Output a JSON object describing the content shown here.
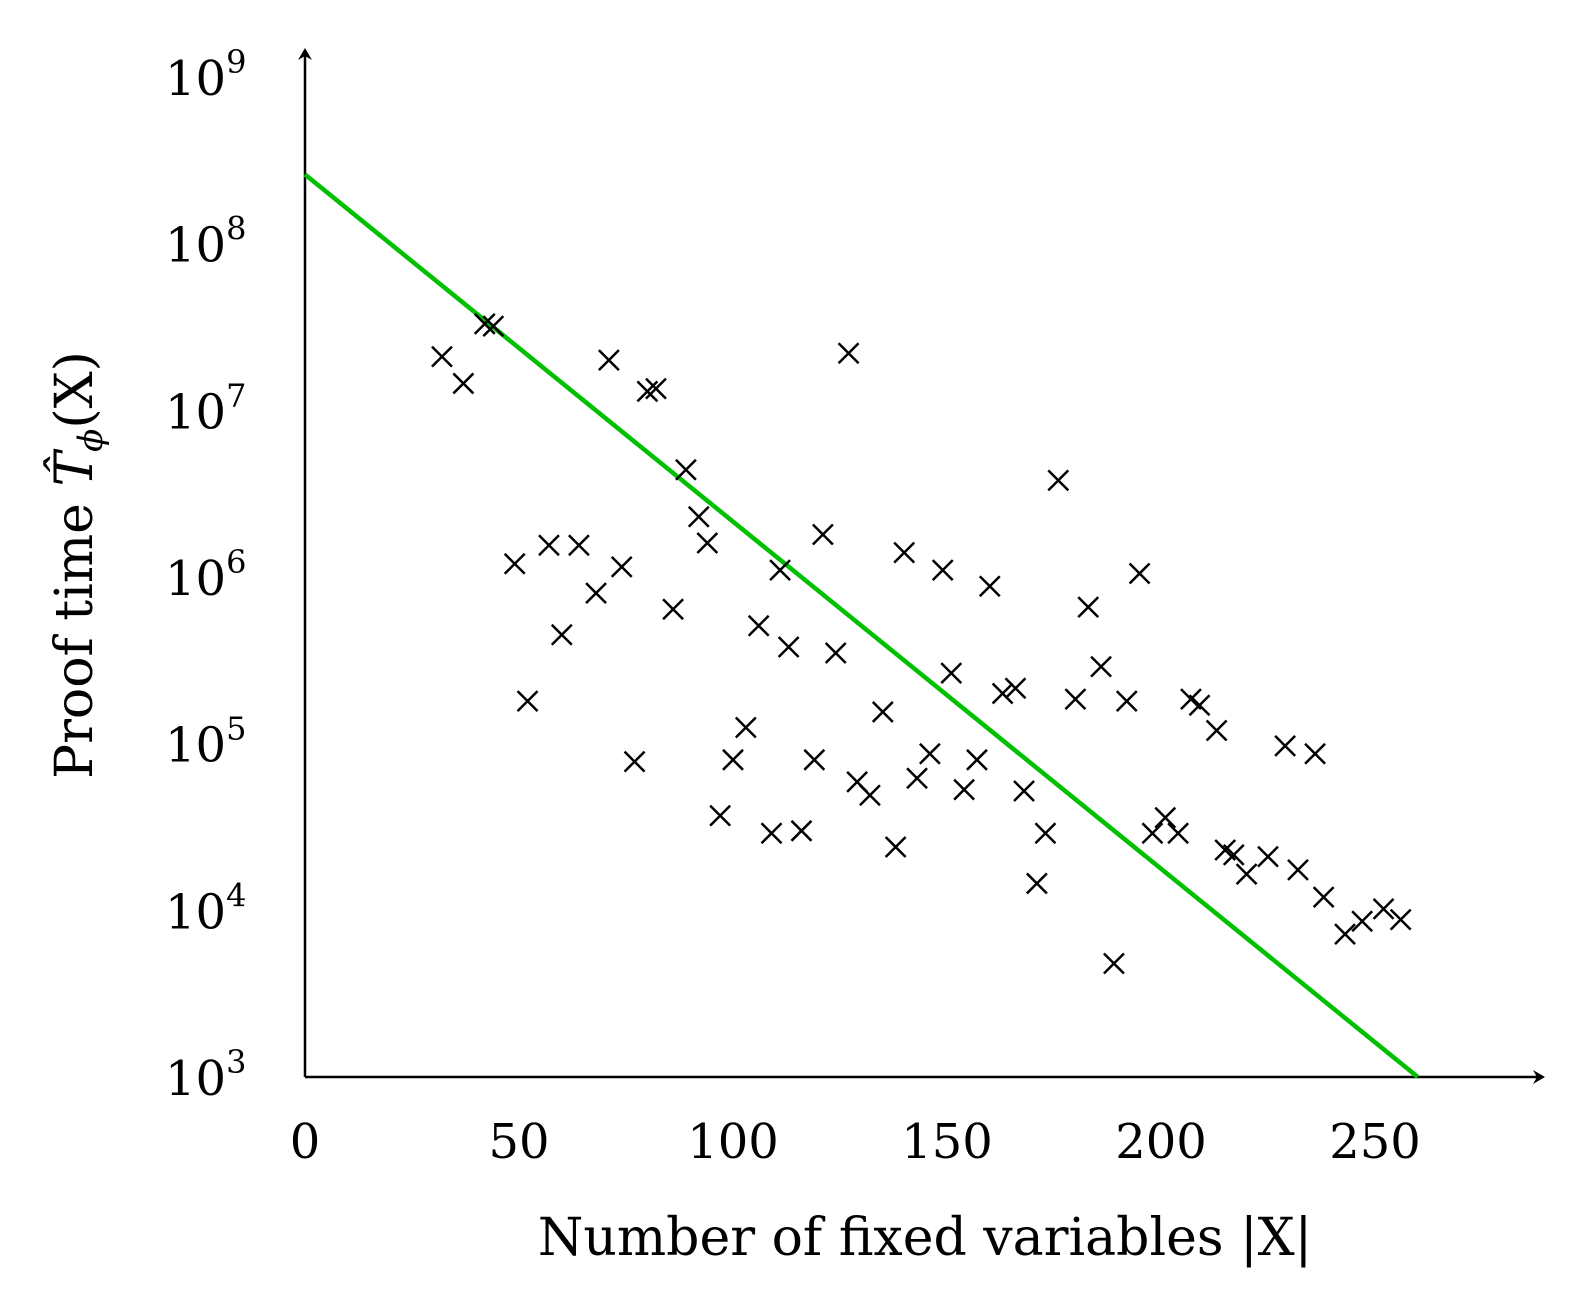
{
  "chart_data": {
    "type": "scatter",
    "xlabel": "Number of fixed variables |X|",
    "ylabel": "Proof time T̂ϕ(X)",
    "ylabel_parts": {
      "prefix": "Proof time ",
      "var": "T̂",
      "sub": "ϕ",
      "suffix": "(X)"
    },
    "xlim": [
      0,
      285
    ],
    "ylim": [
      1000,
      1000000000
    ],
    "yscale": "log",
    "x_ticks": [
      0,
      50,
      100,
      150,
      200,
      250
    ],
    "y_ticks": [
      {
        "base": "10",
        "exp": "3",
        "value": 1000
      },
      {
        "base": "10",
        "exp": "4",
        "value": 10000
      },
      {
        "base": "10",
        "exp": "5",
        "value": 100000
      },
      {
        "base": "10",
        "exp": "6",
        "value": 1000000
      },
      {
        "base": "10",
        "exp": "7",
        "value": 10000000
      },
      {
        "base": "10",
        "exp": "8",
        "value": 100000000
      },
      {
        "base": "10",
        "exp": "9",
        "value": 1000000000
      }
    ],
    "grid": false,
    "marker": "x",
    "marker_color": "#000000",
    "fit_color": "#00c000",
    "fit_line": {
      "x": [
        0,
        260
      ],
      "y": [
        260000000,
        1000
      ]
    },
    "points": [
      [
        32,
        21000000
      ],
      [
        37,
        14500000
      ],
      [
        42,
        33000000
      ],
      [
        44,
        32000000
      ],
      [
        49,
        1200000
      ],
      [
        52,
        180000
      ],
      [
        57,
        1550000
      ],
      [
        60,
        450000
      ],
      [
        64,
        1550000
      ],
      [
        68,
        800000
      ],
      [
        71,
        20000000
      ],
      [
        74,
        1150000
      ],
      [
        77,
        78000
      ],
      [
        80,
        13000000
      ],
      [
        82,
        13500000
      ],
      [
        86,
        640000
      ],
      [
        89,
        4400000
      ],
      [
        92,
        2300000
      ],
      [
        94,
        1600000
      ],
      [
        97,
        37000
      ],
      [
        100,
        80000
      ],
      [
        103,
        125000
      ],
      [
        106,
        510000
      ],
      [
        109,
        29000
      ],
      [
        111,
        1100000
      ],
      [
        113,
        380000
      ],
      [
        116,
        30000
      ],
      [
        119,
        80000
      ],
      [
        121,
        1800000
      ],
      [
        124,
        350000
      ],
      [
        127,
        22000000
      ],
      [
        129,
        59000
      ],
      [
        132,
        49000
      ],
      [
        135,
        155000
      ],
      [
        138,
        24000
      ],
      [
        140,
        1400000
      ],
      [
        143,
        62000
      ],
      [
        146,
        87000
      ],
      [
        149,
        1100000
      ],
      [
        151,
        265000
      ],
      [
        154,
        53000
      ],
      [
        157,
        80000
      ],
      [
        160,
        880000
      ],
      [
        163,
        200000
      ],
      [
        166,
        215000
      ],
      [
        168,
        52000
      ],
      [
        171,
        14500
      ],
      [
        173,
        29000
      ],
      [
        176,
        3800000
      ],
      [
        180,
        185000
      ],
      [
        183,
        660000
      ],
      [
        186,
        290000
      ],
      [
        189,
        4800
      ],
      [
        192,
        180000
      ],
      [
        195,
        1050000
      ],
      [
        198,
        29000
      ],
      [
        201,
        36000
      ],
      [
        204,
        29000
      ],
      [
        207,
        185000
      ],
      [
        209,
        170000
      ],
      [
        213,
        120000
      ],
      [
        215,
        23000
      ],
      [
        217,
        21500
      ],
      [
        220,
        16500
      ],
      [
        225,
        21000
      ],
      [
        229,
        97000
      ],
      [
        232,
        17500
      ],
      [
        236,
        87000
      ],
      [
        238,
        12000
      ],
      [
        243,
        7200
      ],
      [
        247,
        8600
      ],
      [
        252,
        10200
      ],
      [
        256,
        8800
      ]
    ]
  }
}
